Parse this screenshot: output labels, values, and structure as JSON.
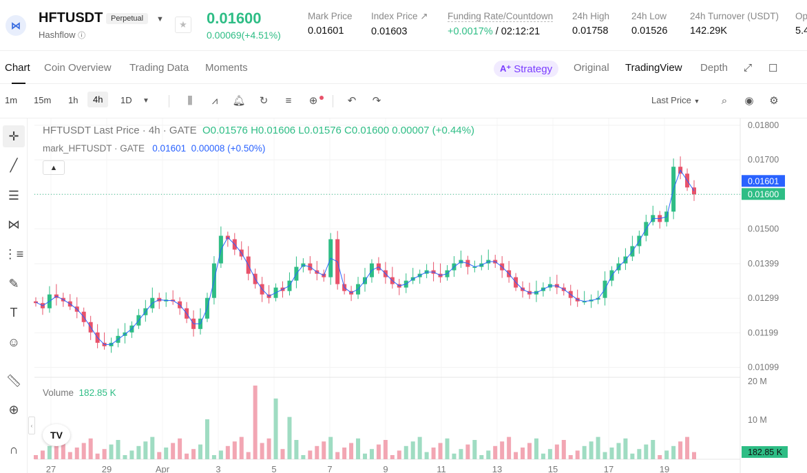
{
  "header": {
    "symbol": "HFTUSDT",
    "contract_type": "Perpetual",
    "name": "Hashflow",
    "price": "0.01600",
    "change": "0.00069(+4.51%)",
    "stats": [
      {
        "label": "Mark Price",
        "value": "0.01601"
      },
      {
        "label": "Index Price ↗",
        "value": "0.01603"
      },
      {
        "label": "Funding Rate/Countdown",
        "value_a": "+0.0017%",
        "value_b": " / 02:12:21"
      },
      {
        "label": "24h High",
        "value": "0.01758"
      },
      {
        "label": "24h Low",
        "value": "0.01526"
      },
      {
        "label": "24h Turnover (USDT)",
        "value": "142.29K"
      },
      {
        "label": "Op",
        "value": "5.4"
      }
    ]
  },
  "tabs": [
    "Chart",
    "Coin Overview",
    "Trading Data",
    "Moments"
  ],
  "right_tabs": {
    "strategy": "Strategy",
    "original": "Original",
    "tradingview": "TradingView",
    "depth": "Depth"
  },
  "toolbar": {
    "intervals": [
      "1m",
      "15m",
      "1h",
      "4h",
      "1D"
    ],
    "selected_interval": "4h",
    "price_type": "Last Price"
  },
  "legend": {
    "title": "HFTUSDT Last Price · 4h · GATE",
    "o": "0.01576",
    "h": "0.01606",
    "l": "0.01576",
    "c": "0.01600",
    "chg": "0.00007 (+0.44%)",
    "mark_name": "mark_HFTUSDT · GATE",
    "mark_val": "0.01601",
    "mark_chg": "0.00008 (+0.50%)",
    "volume_label": "Volume",
    "volume_val": "182.85 K"
  },
  "colors": {
    "up": "#2ebd85",
    "down": "#e8526a",
    "mark": "#2962ff"
  },
  "chart_data": {
    "type": "candlestick",
    "price_axis": [
      "0.01800",
      "0.01700",
      "0.01600",
      "0.01500",
      "0.01399",
      "0.01299",
      "0.01199",
      "0.01099"
    ],
    "ylim": [
      0.0107,
      0.0182
    ],
    "mark_price_label": "0.01601",
    "last_price_label": "0.01600",
    "last_price": 0.016,
    "volume_axis": [
      "20 M",
      "10 M"
    ],
    "volume_last_label": "182.85 K",
    "x_labels": [
      "27",
      "29",
      "Apr",
      "3",
      "5",
      "7",
      "9",
      "11",
      "13",
      "15",
      "17",
      "19"
    ],
    "close_path": [
      0.01285,
      0.0127,
      0.0131,
      0.013,
      0.0129,
      0.01275,
      0.0126,
      0.0123,
      0.012,
      0.0117,
      0.0116,
      0.0117,
      0.0119,
      0.012,
      0.0122,
      0.0125,
      0.0127,
      0.013,
      0.0129,
      0.01295,
      0.0129,
      0.0127,
      0.0124,
      0.0121,
      0.0124,
      0.013,
      0.014,
      0.0148,
      0.0147,
      0.0144,
      0.0142,
      0.0137,
      0.0134,
      0.0131,
      0.013,
      0.0133,
      0.0132,
      0.0135,
      0.0139,
      0.014,
      0.0138,
      0.0137,
      0.0136,
      0.0147,
      0.0134,
      0.0132,
      0.0131,
      0.0134,
      0.0136,
      0.014,
      0.0138,
      0.0136,
      0.0134,
      0.0133,
      0.0135,
      0.0136,
      0.0137,
      0.0138,
      0.0137,
      0.0136,
      0.0138,
      0.014,
      0.0141,
      0.0139,
      0.0139,
      0.014,
      0.0141,
      0.014,
      0.0138,
      0.0136,
      0.0133,
      0.0132,
      0.0131,
      0.0132,
      0.0133,
      0.0134,
      0.0133,
      0.0132,
      0.013,
      0.0129,
      0.0129,
      0.01295,
      0.013,
      0.0135,
      0.0138,
      0.014,
      0.0142,
      0.0145,
      0.0148,
      0.0152,
      0.0154,
      0.0152,
      0.0155,
      0.0168,
      0.0166,
      0.0162,
      0.016
    ]
  }
}
